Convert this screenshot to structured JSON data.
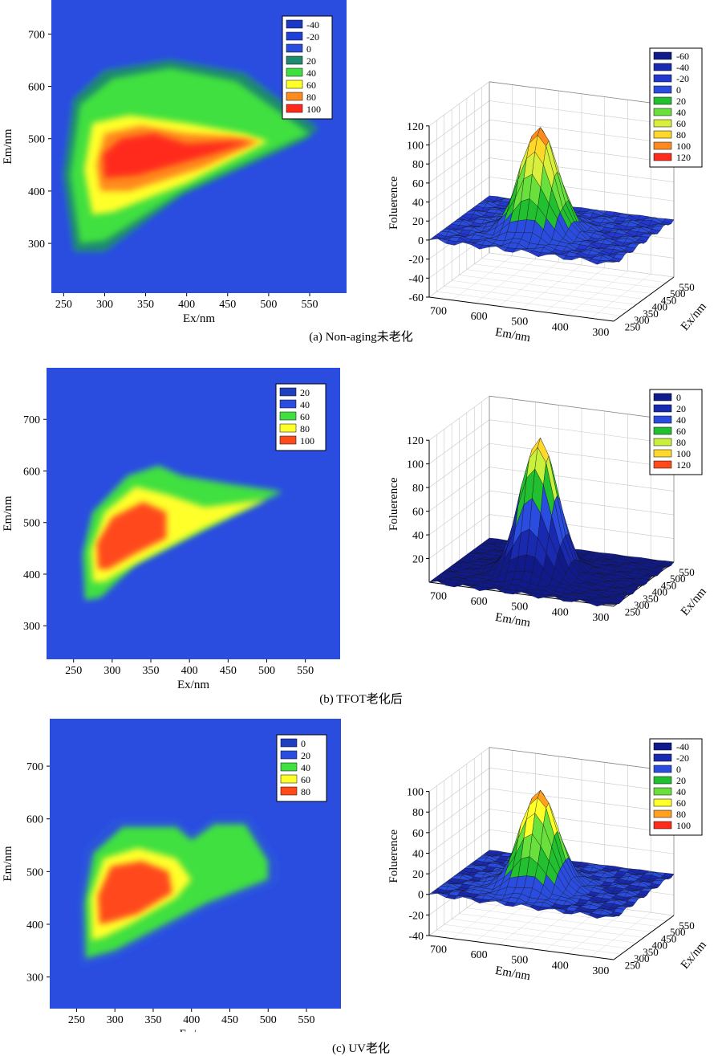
{
  "palette": {
    "deep_blue": "#1f3fbf",
    "blue": "#2a4de0",
    "teal": "#1f8a6e",
    "green": "#3fe03f",
    "yellow_green": "#c8f03c",
    "yellow": "#ffff2a",
    "orange": "#ff8a1e",
    "red": "#ff2a1a"
  },
  "panels": [
    {
      "caption": "(a) Non-aging未老化",
      "contour": {
        "type": "heatmap",
        "xlabel": "Ex/nm",
        "ylabel": "Em/nm",
        "xlim": [
          235,
          595
        ],
        "ylim": [
          205,
          765
        ],
        "xticks": [
          250,
          300,
          350,
          400,
          450,
          500,
          550
        ],
        "yticks": [
          300,
          400,
          500,
          600,
          700
        ],
        "legend": [
          {
            "label": "-40",
            "color": "#1a37c8"
          },
          {
            "label": "-20",
            "color": "#2040d8"
          },
          {
            "label": "0",
            "color": "#2a4de0"
          },
          {
            "label": "20",
            "color": "#1f8a6e"
          },
          {
            "label": "40",
            "color": "#3fe03f"
          },
          {
            "label": "60",
            "color": "#ffff2a"
          },
          {
            "label": "80",
            "color": "#ff8a1e"
          },
          {
            "label": "100",
            "color": "#ff2a1a"
          }
        ],
        "levels": [
          {
            "value": 20,
            "points": [
              [
                263,
                285
              ],
              [
                250,
                430
              ],
              [
                262,
                575
              ],
              [
                300,
                630
              ],
              [
                380,
                650
              ],
              [
                470,
                625
              ],
              [
                560,
                520
              ],
              [
                545,
                500
              ],
              [
                395,
                395
              ],
              [
                300,
                285
              ]
            ]
          },
          {
            "value": 40,
            "points": [
              [
                270,
                300
              ],
              [
                258,
                430
              ],
              [
                270,
                565
              ],
              [
                310,
                615
              ],
              [
                380,
                635
              ],
              [
                460,
                610
              ],
              [
                550,
                510
              ],
              [
                395,
                400
              ],
              [
                300,
                305
              ]
            ]
          },
          {
            "value": 60,
            "points": [
              [
                285,
                355
              ],
              [
                275,
                440
              ],
              [
                285,
                530
              ],
              [
                330,
                545
              ],
              [
                400,
                530
              ],
              [
                470,
                510
              ],
              [
                500,
                495
              ],
              [
                400,
                415
              ],
              [
                310,
                360
              ]
            ]
          },
          {
            "value": 80,
            "points": [
              [
                295,
                400
              ],
              [
                290,
                450
              ],
              [
                300,
                510
              ],
              [
                345,
                525
              ],
              [
                400,
                510
              ],
              [
                455,
                505
              ],
              [
                490,
                495
              ],
              [
                420,
                445
              ],
              [
                330,
                400
              ]
            ]
          },
          {
            "value": 100,
            "points": [
              [
                300,
                425
              ],
              [
                298,
                470
              ],
              [
                320,
                500
              ],
              [
                360,
                510
              ],
              [
                400,
                490
              ],
              [
                455,
                495
              ],
              [
                480,
                495
              ],
              [
                430,
                470
              ],
              [
                340,
                430
              ]
            ]
          }
        ]
      },
      "surface": {
        "zlabel": "Foluerence",
        "xlabel": "Em/nm",
        "ylabel": "Ex/nm",
        "zlim": [
          -60,
          120
        ],
        "zticks": [
          -60,
          -40,
          -20,
          0,
          20,
          40,
          60,
          80,
          100,
          120
        ],
        "em_ticks": [
          700,
          600,
          500,
          400,
          300
        ],
        "ex_ticks": [
          250,
          300,
          350,
          400,
          450,
          500,
          550
        ],
        "peak_z": 110,
        "legend": [
          {
            "label": "-60",
            "color": "#101a8a"
          },
          {
            "label": "-40",
            "color": "#1a2ab0"
          },
          {
            "label": "-20",
            "color": "#2238d0"
          },
          {
            "label": "0",
            "color": "#2a4de0"
          },
          {
            "label": "20",
            "color": "#22c030"
          },
          {
            "label": "40",
            "color": "#6ae03c"
          },
          {
            "label": "60",
            "color": "#d8f03c"
          },
          {
            "label": "80",
            "color": "#ffd82a"
          },
          {
            "label": "100",
            "color": "#ff8a1e"
          },
          {
            "label": "120",
            "color": "#ff2a1a"
          }
        ]
      }
    },
    {
      "caption": "(b) TFOT老化后",
      "contour": {
        "type": "heatmap",
        "xlabel": "Ex/nm",
        "ylabel": "Em/nm",
        "xlim": [
          215,
          595
        ],
        "ylim": [
          235,
          800
        ],
        "xticks": [
          250,
          300,
          350,
          400,
          450,
          500,
          550
        ],
        "yticks": [
          300,
          400,
          500,
          600,
          700
        ],
        "legend": [
          {
            "label": "20",
            "color": "#1f3fbf"
          },
          {
            "label": "40",
            "color": "#2a4de0"
          },
          {
            "label": "60",
            "color": "#3fe03f"
          },
          {
            "label": "80",
            "color": "#ffff2a"
          },
          {
            "label": "100",
            "color": "#ff4a1a"
          }
        ],
        "levels": [
          {
            "value": 60,
            "points": [
              [
                265,
                350
              ],
              [
                262,
                440
              ],
              [
                275,
                520
              ],
              [
                320,
                590
              ],
              [
                360,
                610
              ],
              [
                390,
                590
              ],
              [
                450,
                575
              ],
              [
                520,
                560
              ],
              [
                450,
                510
              ],
              [
                330,
                420
              ],
              [
                285,
                355
              ]
            ]
          },
          {
            "value": 80,
            "points": [
              [
                275,
                385
              ],
              [
                272,
                445
              ],
              [
                290,
                520
              ],
              [
                330,
                570
              ],
              [
                370,
                555
              ],
              [
                420,
                530
              ],
              [
                500,
                545
              ],
              [
                420,
                490
              ],
              [
                330,
                420
              ],
              [
                290,
                385
              ]
            ]
          },
          {
            "value": 100,
            "points": [
              [
                282,
                410
              ],
              [
                280,
                460
              ],
              [
                300,
                510
              ],
              [
                340,
                540
              ],
              [
                370,
                520
              ],
              [
                370,
                470
              ],
              [
                330,
                440
              ],
              [
                295,
                410
              ]
            ]
          }
        ]
      },
      "surface": {
        "zlabel": "Foluerence",
        "xlabel": "Em/nm",
        "ylabel": "Ex/nm",
        "zlim": [
          0,
          120
        ],
        "zticks": [
          20,
          40,
          60,
          80,
          100,
          120
        ],
        "em_ticks": [
          700,
          600,
          500,
          400,
          300
        ],
        "ex_ticks": [
          250,
          300,
          350,
          400,
          450,
          500,
          550
        ],
        "peak_z": 115,
        "legend": [
          {
            "label": "0",
            "color": "#101a8a"
          },
          {
            "label": "20",
            "color": "#1a2ab0"
          },
          {
            "label": "40",
            "color": "#2a4de0"
          },
          {
            "label": "60",
            "color": "#22c030"
          },
          {
            "label": "80",
            "color": "#c8f03c"
          },
          {
            "label": "100",
            "color": "#ffd82a"
          },
          {
            "label": "120",
            "color": "#ff4a1a"
          }
        ]
      }
    },
    {
      "caption": "(c) UV老化",
      "contour": {
        "type": "heatmap",
        "xlabel": "Ex/nm",
        "ylabel": "Em/nm",
        "xlim": [
          215,
          595
        ],
        "ylim": [
          240,
          790
        ],
        "xticks": [
          250,
          300,
          350,
          400,
          450,
          500,
          550
        ],
        "yticks": [
          300,
          400,
          500,
          600,
          700
        ],
        "legend": [
          {
            "label": "0",
            "color": "#1f3fbf"
          },
          {
            "label": "20",
            "color": "#2a4de0"
          },
          {
            "label": "40",
            "color": "#3fe03f"
          },
          {
            "label": "60",
            "color": "#ffff2a"
          },
          {
            "label": "80",
            "color": "#ff4a1a"
          }
        ],
        "levels": [
          {
            "value": 20,
            "points": [
              [
                258,
                325
              ],
              [
                255,
                440
              ],
              [
                265,
                545
              ],
              [
                300,
                595
              ],
              [
                380,
                595
              ],
              [
                400,
                570
              ],
              [
                430,
                600
              ],
              [
                475,
                600
              ],
              [
                510,
                520
              ],
              [
                510,
                480
              ],
              [
                420,
                430
              ],
              [
                300,
                340
              ]
            ]
          },
          {
            "value": 40,
            "points": [
              [
                262,
                335
              ],
              [
                260,
                440
              ],
              [
                272,
                535
              ],
              [
                310,
                585
              ],
              [
                380,
                585
              ],
              [
                400,
                560
              ],
              [
                430,
                590
              ],
              [
                470,
                590
              ],
              [
                500,
                520
              ],
              [
                500,
                485
              ],
              [
                420,
                440
              ],
              [
                300,
                350
              ]
            ]
          },
          {
            "value": 60,
            "points": [
              [
                270,
                370
              ],
              [
                268,
                450
              ],
              [
                285,
                525
              ],
              [
                330,
                545
              ],
              [
                380,
                525
              ],
              [
                400,
                485
              ],
              [
                380,
                450
              ],
              [
                320,
                400
              ],
              [
                285,
                375
              ]
            ]
          },
          {
            "value": 80,
            "points": [
              [
                280,
                400
              ],
              [
                278,
                455
              ],
              [
                295,
                510
              ],
              [
                335,
                520
              ],
              [
                370,
                500
              ],
              [
                375,
                460
              ],
              [
                330,
                420
              ],
              [
                295,
                405
              ]
            ]
          }
        ]
      },
      "surface": {
        "zlabel": "Foluerence",
        "xlabel": "Em/nm",
        "ylabel": "Ex/nm",
        "zlim": [
          -40,
          100
        ],
        "zticks": [
          -40,
          -20,
          0,
          20,
          40,
          60,
          80,
          100
        ],
        "em_ticks": [
          700,
          600,
          500,
          400,
          300
        ],
        "ex_ticks": [
          250,
          300,
          350,
          400,
          450,
          500,
          550
        ],
        "peak_z": 93,
        "legend": [
          {
            "label": "-40",
            "color": "#101a8a"
          },
          {
            "label": "-20",
            "color": "#1a2ab0"
          },
          {
            "label": "0",
            "color": "#2a4de0"
          },
          {
            "label": "20",
            "color": "#22c030"
          },
          {
            "label": "40",
            "color": "#6ae03c"
          },
          {
            "label": "60",
            "color": "#ffff2a"
          },
          {
            "label": "80",
            "color": "#ffa01e"
          },
          {
            "label": "100",
            "color": "#ff2a1a"
          }
        ]
      }
    }
  ]
}
